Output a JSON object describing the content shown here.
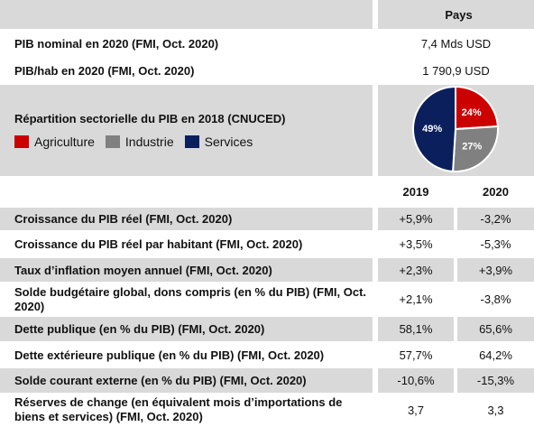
{
  "header": {
    "country_label": "Pays"
  },
  "top_rows": [
    {
      "label": "PIB nominal en 2020 (FMI, Oct. 2020)",
      "value": "7,4 Mds USD"
    },
    {
      "label": "PIB/hab en 2020 (FMI, Oct. 2020)",
      "value": "1 790,9 USD"
    }
  ],
  "sector": {
    "title": "Répartition sectorielle du PIB en 2018 (CNUCED)",
    "legend": [
      {
        "label": "Agriculture",
        "color": "#cc0000"
      },
      {
        "label": "Industrie",
        "color": "#808080"
      },
      {
        "label": "Services",
        "color": "#0a1f5c"
      }
    ]
  },
  "chart_data": {
    "type": "pie",
    "title": "Répartition sectorielle du PIB en 2018 (CNUCED)",
    "categories": [
      "Agriculture",
      "Industrie",
      "Services"
    ],
    "values": [
      24,
      27,
      49
    ],
    "labels": [
      "24%",
      "27%",
      "49%"
    ],
    "colors": [
      "#cc0000",
      "#808080",
      "#0a1f5c"
    ]
  },
  "years": [
    "2019",
    "2020"
  ],
  "indicators": [
    {
      "label": "Croissance du PIB réel (FMI, Oct. 2020)",
      "v2019": "+5,9%",
      "v2020": "-3,2%"
    },
    {
      "label": "Croissance du PIB réel par habitant (FMI, Oct. 2020)",
      "v2019": "+3,5%",
      "v2020": "-5,3%"
    },
    {
      "label": "Taux d’inflation moyen annuel (FMI, Oct. 2020)",
      "v2019": "+2,3%",
      "v2020": "+3,9%"
    },
    {
      "label": "Solde budgétaire global, dons compris (en % du PIB) (FMI, Oct. 2020)",
      "v2019": "+2,1%",
      "v2020": "-3,8%"
    },
    {
      "label": "Dette publique (en % du PIB) (FMI, Oct. 2020)",
      "v2019": "58,1%",
      "v2020": "65,6%"
    },
    {
      "label": "Dette extérieure publique (en % du PIB) (FMI, Oct. 2020)",
      "v2019": "57,7%",
      "v2020": "64,2%"
    },
    {
      "label": "Solde courant externe (en % du PIB) (FMI, Oct. 2020)",
      "v2019": "-10,6%",
      "v2020": "-15,3%"
    },
    {
      "label": "Réserves de change (en équivalent mois d’importations de biens et services) (FMI, Oct. 2020)",
      "v2019": "3,7",
      "v2020": "3,3"
    }
  ]
}
